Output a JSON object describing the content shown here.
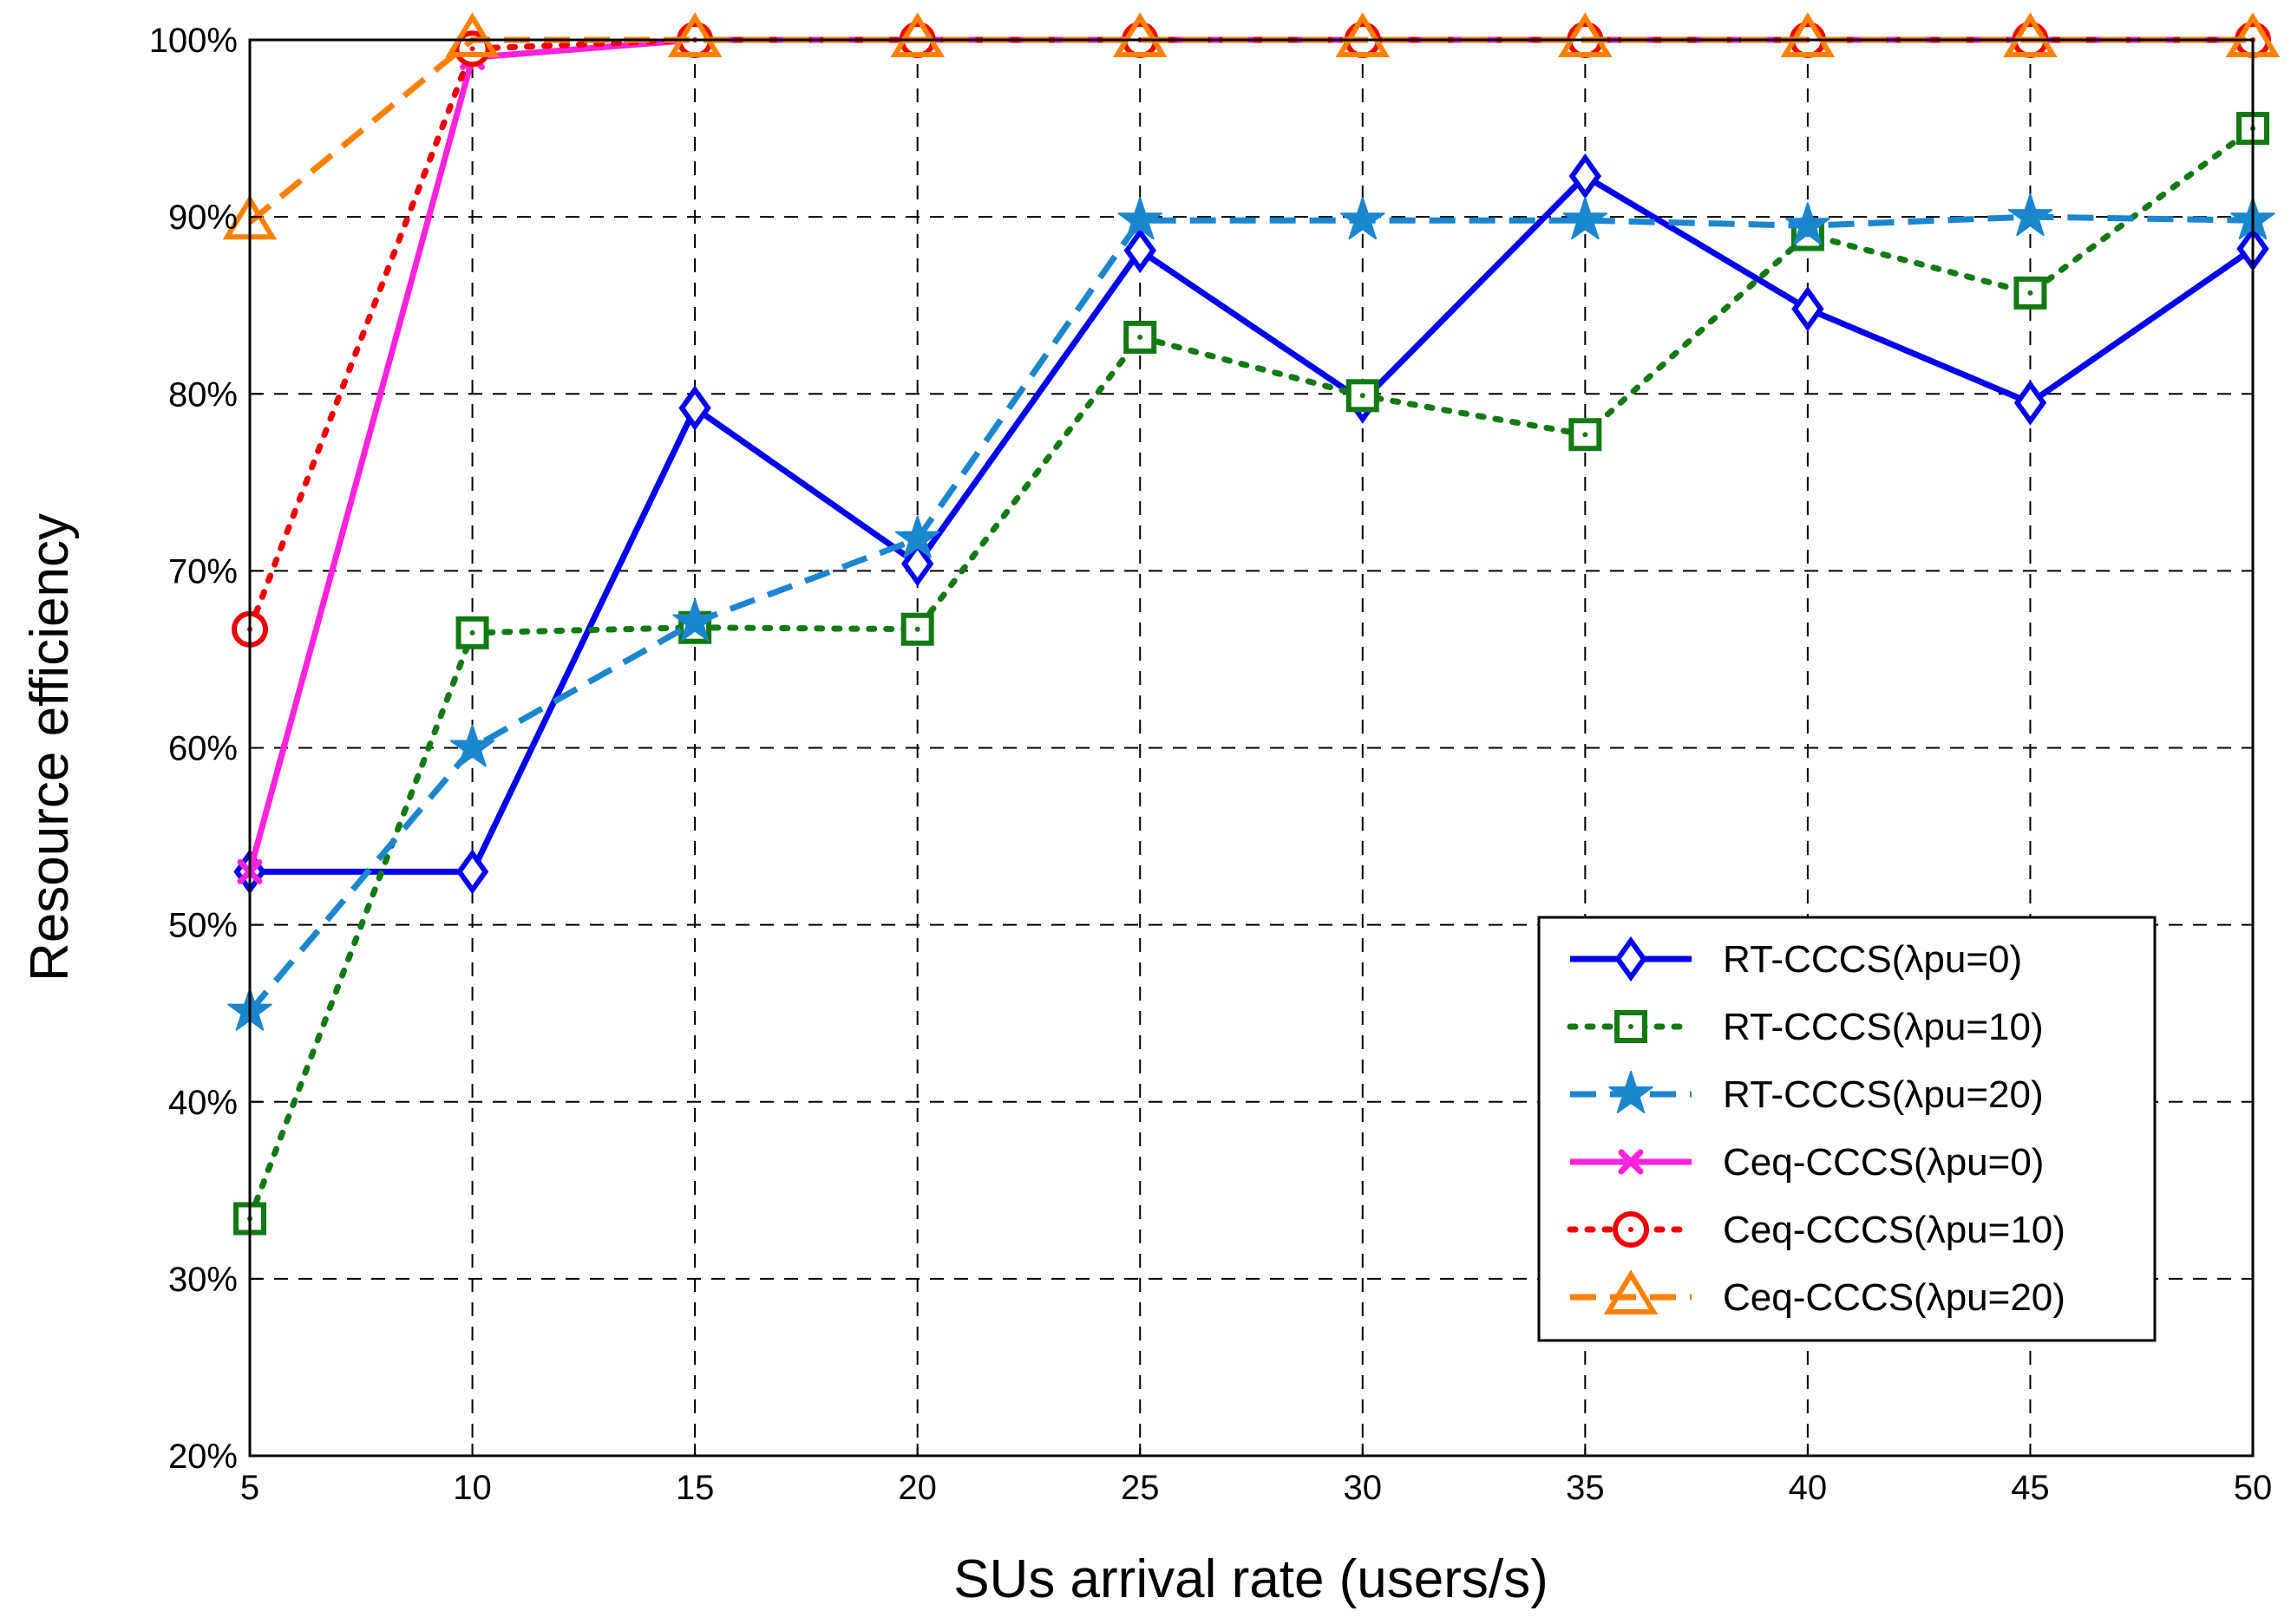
{
  "chart_data": {
    "type": "line",
    "title": "",
    "xlabel": "SUs arrival rate (users/s)",
    "ylabel": "Resource efficiency",
    "x": [
      5,
      10,
      15,
      20,
      25,
      30,
      35,
      40,
      45,
      50
    ],
    "xlim": [
      5,
      50
    ],
    "ylim": [
      20,
      100
    ],
    "xticks": [
      "5",
      "10",
      "15",
      "20",
      "25",
      "30",
      "35",
      "40",
      "45",
      "50"
    ],
    "yticks": [
      "20%",
      "30%",
      "40%",
      "50%",
      "60%",
      "70%",
      "80%",
      "90%",
      "100%"
    ],
    "grid": true,
    "legend_position": "lower-right",
    "series": [
      {
        "name": "RT-CCCS(λpu=0)",
        "color": "#0000ee",
        "marker": "diamond",
        "line": "solid",
        "values": [
          53,
          53,
          79.2,
          70.4,
          88.1,
          79.6,
          92.3,
          84.8,
          79.5,
          88.2
        ]
      },
      {
        "name": "RT-CCCS(λpu=10)",
        "color": "#117a11",
        "marker": "square",
        "line": "dotted",
        "values": [
          33.4,
          66.5,
          66.8,
          66.7,
          83.2,
          79.9,
          77.7,
          89.0,
          85.7,
          95.0
        ]
      },
      {
        "name": "RT-CCCS(λpu=20)",
        "color": "#1a86cf",
        "marker": "star",
        "line": "dashed",
        "values": [
          45.1,
          60.0,
          67.1,
          71.8,
          89.8,
          89.8,
          89.8,
          89.5,
          90.0,
          89.8
        ]
      },
      {
        "name": "Ceq-CCCS(λpu=0)",
        "color": "#ff22dd",
        "marker": "x",
        "line": "solid",
        "values": [
          53,
          99.0,
          100,
          100,
          100,
          100,
          100,
          100,
          100,
          100
        ]
      },
      {
        "name": "Ceq-CCCS(λpu=10)",
        "color": "#ee0000",
        "marker": "circle",
        "line": "dotted",
        "values": [
          66.7,
          99.5,
          100,
          100,
          100,
          100,
          100,
          100,
          100,
          100
        ]
      },
      {
        "name": "Ceq-CCCS(λpu=20)",
        "color": "#ff8000",
        "marker": "triangle",
        "line": "dashed",
        "values": [
          89.7,
          100,
          100,
          100,
          100,
          100,
          100,
          100,
          100,
          100
        ]
      }
    ]
  }
}
